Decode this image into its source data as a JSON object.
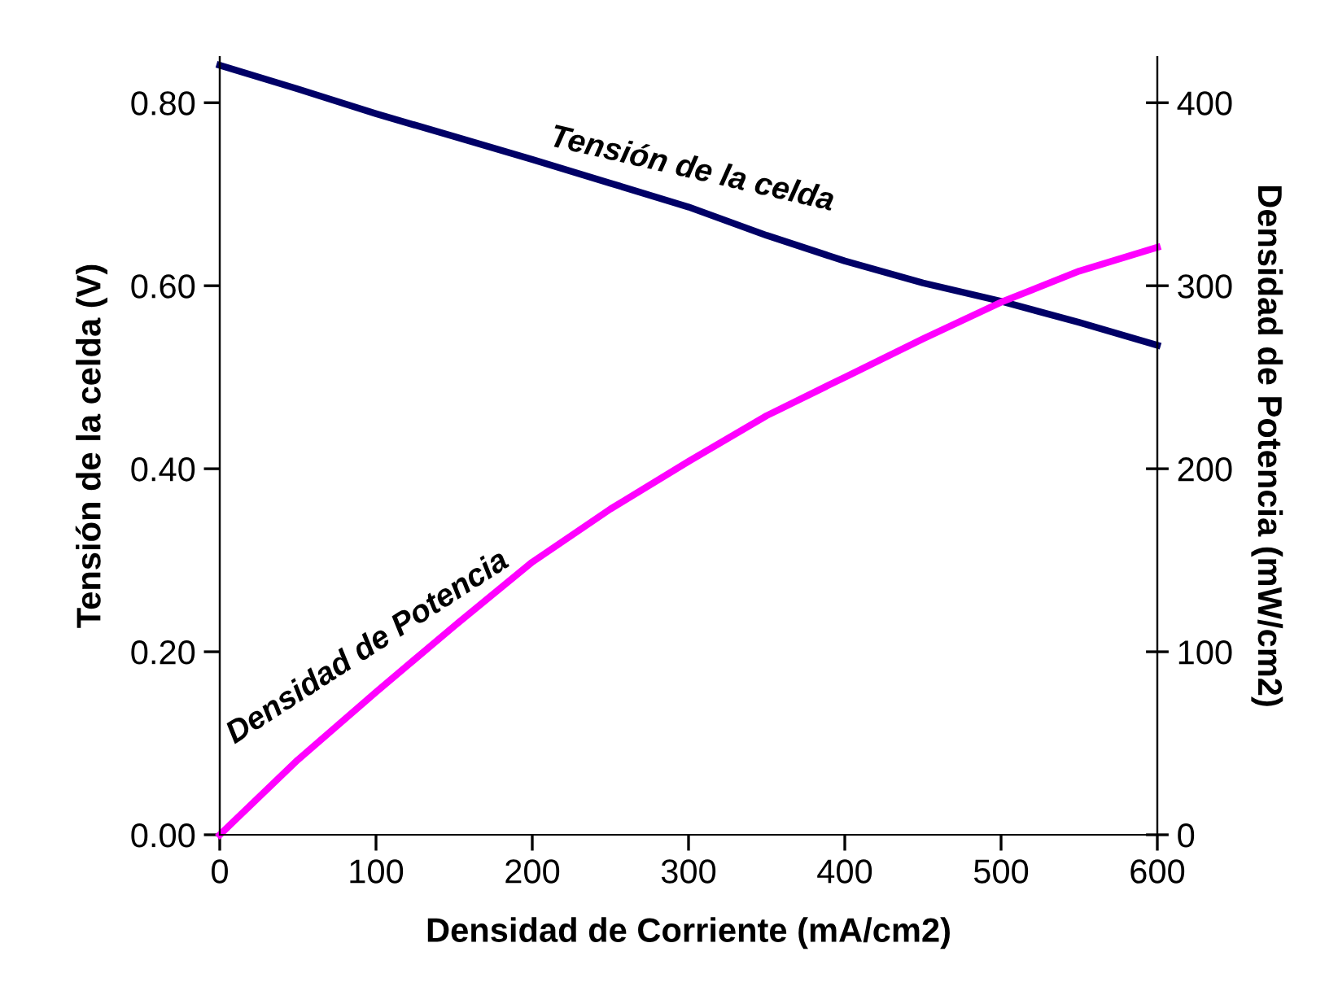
{
  "chart_data": {
    "type": "line",
    "xlabel": "Densidad de Corriente (mA/cm2)",
    "ylabel": "Tensión de la celda (V)",
    "y2label": "Densidad de Potencia (mW/cm2)",
    "x": [
      0,
      50,
      100,
      150,
      200,
      250,
      300,
      350,
      400,
      450,
      500,
      550,
      600
    ],
    "series": [
      {
        "name": "Tensión de la celda",
        "color": "#000066",
        "values": [
          0.841,
          0.815,
          0.788,
          0.763,
          0.738,
          0.712,
          0.686,
          0.655,
          0.627,
          0.603,
          0.583,
          0.56,
          0.535
        ]
      },
      {
        "name": "Densidad de Potencia",
        "color": "#ff00ff",
        "axis": "y2",
        "values": [
          0,
          41,
          78,
          114,
          149,
          178,
          204,
          229,
          250,
          271,
          291,
          308,
          321
        ]
      }
    ],
    "xlim": [
      0,
      600
    ],
    "xticks": [
      0,
      100,
      200,
      300,
      400,
      500,
      600
    ],
    "ylim": [
      0,
      0.85
    ],
    "yticks": [
      {
        "value": 0,
        "label": "0.00"
      },
      {
        "value": 0.2,
        "label": "0.20"
      },
      {
        "value": 0.4,
        "label": "0.40"
      },
      {
        "value": 0.6,
        "label": "0.60"
      },
      {
        "value": 0.8,
        "label": "0.80"
      }
    ],
    "y2lim": [
      0,
      425
    ],
    "y2ticks": [
      0,
      100,
      200,
      300,
      400
    ],
    "grid": false,
    "legend": false,
    "marker": "none",
    "line_style": "solid"
  }
}
